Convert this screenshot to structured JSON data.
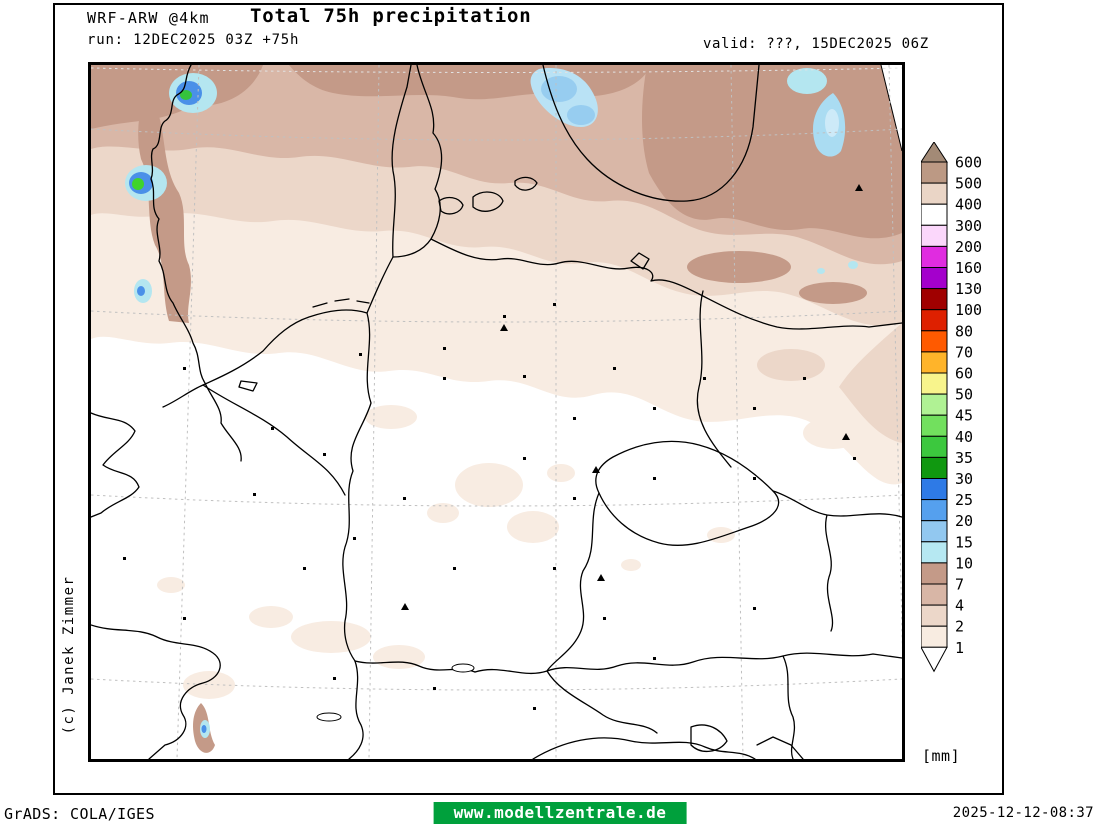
{
  "header": {
    "model": "WRF-ARW @4km",
    "title": "Total 75h precipitation",
    "run": "run: 12DEC2025 03Z +75h",
    "valid": "valid: ???, 15DEC2025 06Z"
  },
  "copyright": "(c) Janek Zimmer",
  "colorbar": {
    "unit_label": "[mm]",
    "labels": [
      "600",
      "500",
      "400",
      "300",
      "200",
      "160",
      "130",
      "100",
      "80",
      "70",
      "60",
      "50",
      "45",
      "40",
      "35",
      "30",
      "25",
      "20",
      "15",
      "10",
      "7",
      "4",
      "2",
      "1"
    ],
    "cell_colors": [
      "#bc9984",
      "#ead5c6",
      "#ffffff",
      "#fbd7fb",
      "#e02ce0",
      "#a400cc",
      "#a00000",
      "#de2000",
      "#ff5a00",
      "#ffb42a",
      "#f8f48c",
      "#b0f294",
      "#72e05e",
      "#3cc83e",
      "#109810",
      "#2e7ae6",
      "#55a0ee",
      "#92c8f0",
      "#b6e8f2",
      "#c49a88",
      "#d8b6a6",
      "#ecd7c9",
      "#f8ece1"
    ],
    "top_arrow_color": "#a38a76",
    "bottom_arrow_color": "#ffffff"
  },
  "footer": {
    "left": "GrADS: COLA/IGES",
    "site": "www.modellzentrale.de",
    "site_bg": "#00a03c",
    "timestamp": "2025-12-12-08:37"
  },
  "map_colors": {
    "precip_1mm": "#f8ece2",
    "precip_2mm": "#ecd7c9",
    "precip_4mm": "#d9b7a7",
    "precip_7mm": "#c49a88",
    "precip_10mm": "#b4e6f0",
    "precip_25mm": "#4a90e8",
    "precip_40mm": "#35c33c",
    "graticule": "#c0c0c0",
    "coastline": "#000000"
  }
}
